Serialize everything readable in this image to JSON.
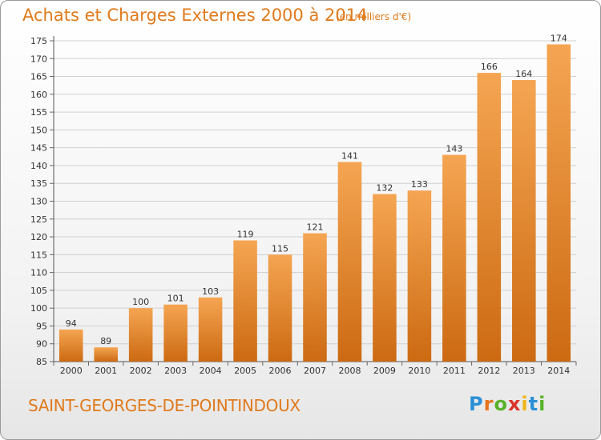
{
  "header": {
    "title": "Achats et Charges Externes 2000 à 2014",
    "subtitle": "(en milliers d'€)"
  },
  "footer": {
    "commune": "SAINT-GEORGES-DE-POINTINDOUX",
    "logo_letters": [
      "P",
      "r",
      "o",
      "x",
      "i",
      "t",
      "i"
    ]
  },
  "colors": {
    "accent": "#e07a1c",
    "bar_top": "#f5a552",
    "bar_bottom": "#cc6a12",
    "grid": "#d0d0d0"
  },
  "chart_data": {
    "type": "bar",
    "categories": [
      "2000",
      "2001",
      "2002",
      "2003",
      "2004",
      "2005",
      "2006",
      "2007",
      "2008",
      "2009",
      "2010",
      "2011",
      "2012",
      "2013",
      "2014"
    ],
    "values": [
      94,
      89,
      100,
      101,
      103,
      119,
      115,
      121,
      141,
      132,
      133,
      143,
      166,
      164,
      174
    ],
    "data_labels": [
      "94",
      "89",
      "100",
      "101",
      "103",
      "119",
      "115",
      "121",
      "141",
      "132",
      "133",
      "143",
      "166",
      "164",
      "174"
    ],
    "yticks": [
      "85",
      "90",
      "95",
      "100",
      "105",
      "110",
      "115",
      "120",
      "125",
      "130",
      "135",
      "140",
      "145",
      "150",
      "155",
      "160",
      "165",
      "170",
      "175"
    ],
    "ylim": [
      85,
      175
    ],
    "grid": true,
    "legend": "none"
  }
}
